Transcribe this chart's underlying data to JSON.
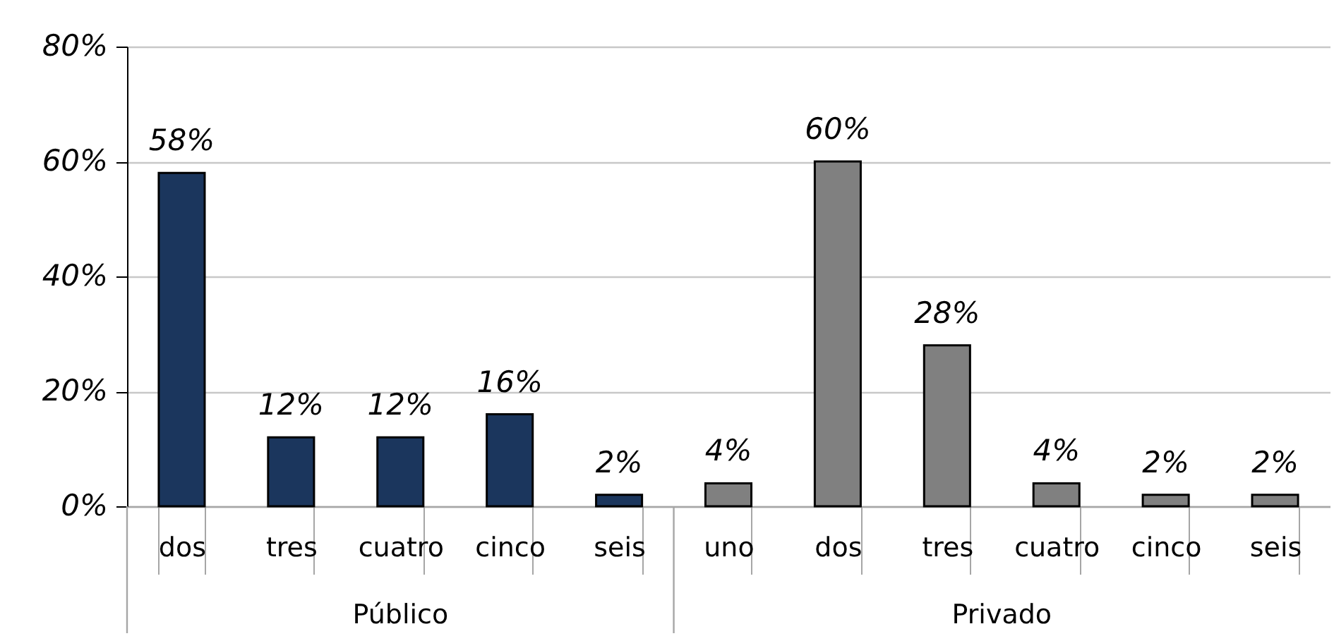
{
  "chart_data": {
    "type": "bar",
    "categories": [
      "dos",
      "tres",
      "cuatro",
      "cinco",
      "seis",
      "uno",
      "dos",
      "tres",
      "cuatro",
      "cinco",
      "seis"
    ],
    "series": [
      {
        "name": "Público",
        "color": "#1b365d",
        "values": [
          58,
          12,
          12,
          16,
          2,
          null,
          null,
          null,
          null,
          null,
          null
        ],
        "value_labels": [
          "58%",
          "12%",
          "12%",
          "16%",
          "2%",
          null,
          null,
          null,
          null,
          null,
          null
        ]
      },
      {
        "name": "Privado",
        "color": "#808080",
        "values": [
          null,
          null,
          null,
          null,
          null,
          4,
          60,
          28,
          4,
          2,
          2
        ],
        "value_labels": [
          null,
          null,
          null,
          null,
          null,
          "4%",
          "60%",
          "28%",
          "4%",
          "2%",
          "2%"
        ]
      }
    ],
    "ylim": [
      0,
      80
    ],
    "yticks": [
      {
        "value": 0,
        "label": "0%"
      },
      {
        "value": 20,
        "label": "20%"
      },
      {
        "value": 40,
        "label": "40%"
      },
      {
        "value": 60,
        "label": "60%"
      },
      {
        "value": 80,
        "label": "80%"
      }
    ],
    "grid": "y"
  }
}
